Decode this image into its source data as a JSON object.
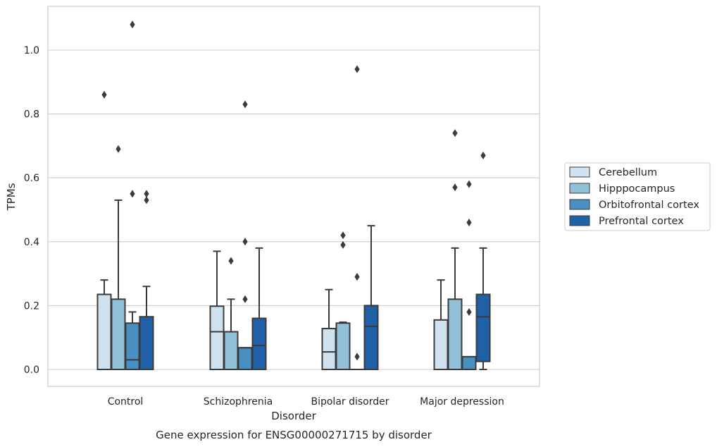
{
  "chart_data": {
    "type": "box",
    "title": "Gene expression for ENSG00000271715 by disorder",
    "xlabel": "Disorder",
    "ylabel": "TPMs",
    "ylim": [
      -0.05,
      1.14
    ],
    "yticks": [
      0.0,
      0.2,
      0.4,
      0.6,
      0.8,
      1.0
    ],
    "ytick_labels": [
      "0.0",
      "0.2",
      "0.4",
      "0.6",
      "0.8",
      "1.0"
    ],
    "grid": "horizontal",
    "legend_position": "right",
    "categories": [
      "Control",
      "Schizophrenia",
      "Bipolar disorder",
      "Major depression"
    ],
    "series": [
      {
        "name": "Cerebellum",
        "color": "#d0e1f0",
        "boxes": [
          {
            "q1": 0.0,
            "median": 0.0,
            "q3": 0.235,
            "whisker_low": 0.0,
            "whisker_high": 0.28,
            "outliers": [
              0.86
            ]
          },
          {
            "q1": 0.0,
            "median": 0.118,
            "q3": 0.198,
            "whisker_low": 0.0,
            "whisker_high": 0.37,
            "outliers": []
          },
          {
            "q1": 0.0,
            "median": 0.055,
            "q3": 0.128,
            "whisker_low": 0.0,
            "whisker_high": 0.25,
            "outliers": []
          },
          {
            "q1": 0.0,
            "median": 0.0,
            "q3": 0.155,
            "whisker_low": 0.0,
            "whisker_high": 0.28,
            "outliers": []
          }
        ]
      },
      {
        "name": "Hipppocampus",
        "color": "#93c0d9",
        "boxes": [
          {
            "q1": 0.0,
            "median": 0.0,
            "q3": 0.22,
            "whisker_low": 0.0,
            "whisker_high": 0.53,
            "outliers": [
              0.69
            ]
          },
          {
            "q1": 0.0,
            "median": 0.118,
            "q3": 0.118,
            "whisker_low": 0.0,
            "whisker_high": 0.22,
            "outliers": [
              0.34
            ]
          },
          {
            "q1": 0.0,
            "median": 0.0,
            "q3": 0.145,
            "whisker_low": 0.0,
            "whisker_high": 0.148,
            "outliers": [
              0.42,
              0.39
            ]
          },
          {
            "q1": 0.0,
            "median": 0.0,
            "q3": 0.22,
            "whisker_low": 0.0,
            "whisker_high": 0.38,
            "outliers": [
              0.74,
              0.57
            ]
          }
        ]
      },
      {
        "name": "Orbitofrontal cortex",
        "color": "#4a8fc1",
        "boxes": [
          {
            "q1": 0.0,
            "median": 0.03,
            "q3": 0.145,
            "whisker_low": 0.0,
            "whisker_high": 0.18,
            "outliers": [
              1.08,
              0.55
            ]
          },
          {
            "q1": 0.0,
            "median": 0.068,
            "q3": 0.068,
            "whisker_low": 0.0,
            "whisker_high": 0.068,
            "outliers": [
              0.83,
              0.4,
              0.22
            ]
          },
          {
            "q1": 0.0,
            "median": 0.0,
            "q3": 0.0,
            "whisker_low": 0.0,
            "whisker_high": 0.0,
            "outliers": [
              0.94,
              0.29,
              0.04
            ]
          },
          {
            "q1": 0.0,
            "median": 0.0,
            "q3": 0.04,
            "whisker_low": 0.0,
            "whisker_high": 0.04,
            "outliers": [
              0.58,
              0.46,
              0.18
            ]
          }
        ]
      },
      {
        "name": "Prefrontal cortex",
        "color": "#2060a7",
        "boxes": [
          {
            "q1": 0.0,
            "median": 0.0,
            "q3": 0.165,
            "whisker_low": 0.0,
            "whisker_high": 0.26,
            "outliers": [
              0.55,
              0.53
            ]
          },
          {
            "q1": 0.0,
            "median": 0.075,
            "q3": 0.16,
            "whisker_low": 0.0,
            "whisker_high": 0.38,
            "outliers": []
          },
          {
            "q1": 0.0,
            "median": 0.135,
            "q3": 0.2,
            "whisker_low": 0.0,
            "whisker_high": 0.45,
            "outliers": []
          },
          {
            "q1": 0.025,
            "median": 0.165,
            "q3": 0.235,
            "whisker_low": 0.0,
            "whisker_high": 0.38,
            "outliers": [
              0.67
            ]
          }
        ]
      }
    ]
  }
}
